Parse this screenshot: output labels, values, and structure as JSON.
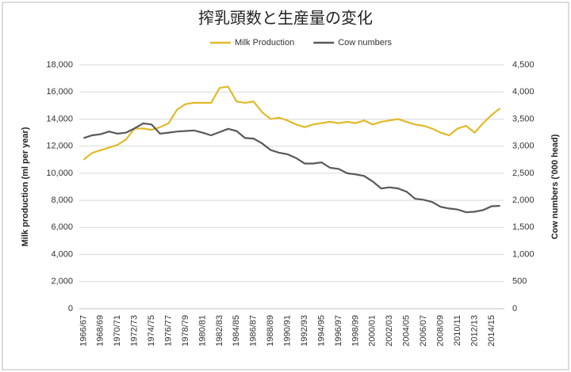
{
  "chart_data": {
    "type": "line",
    "title": "搾乳頭数と生産量の変化",
    "y_label": "Milk production (ml per year)",
    "y2_label": "Cow numbers ('000 head)",
    "legend": "top",
    "grid": true,
    "categories": [
      "1966/67",
      null,
      "1968/69",
      null,
      "1970/71",
      null,
      "1972/73",
      null,
      "1974/75",
      null,
      "1976/77",
      null,
      "1978/79",
      null,
      "1980/81",
      null,
      "1982/83",
      null,
      "1984/85",
      null,
      "1986/87",
      null,
      "1988/89",
      null,
      "1990/91",
      null,
      "1992/93",
      null,
      "1994/95",
      null,
      "1996/97",
      null,
      "1998/99",
      null,
      "2000/01",
      null,
      "2002/03",
      null,
      "2004/05",
      null,
      "2006/07",
      null,
      "2008/09",
      null,
      "2010/11",
      null,
      "2012/13",
      null,
      "2014/15",
      null
    ],
    "series": [
      {
        "name": "Milk Production",
        "color": "#e2b928",
        "axis": "y",
        "values": [
          11000,
          11500,
          11700,
          11900,
          12100,
          12500,
          13300,
          13300,
          13200,
          13400,
          13700,
          14700,
          15100,
          15200,
          15200,
          15200,
          16300,
          16400,
          15300,
          15200,
          15300,
          14500,
          14000,
          14100,
          13900,
          13600,
          13400,
          13600,
          13700,
          13800,
          13700,
          13800,
          13700,
          13900,
          13600,
          13800,
          13900,
          14000,
          13800,
          13600,
          13500,
          13300,
          13000,
          12800,
          13300,
          13500,
          13000,
          13700,
          14300,
          14800
        ]
      },
      {
        "name": "Cow numbers",
        "color": "#595959",
        "axis": "y2",
        "values": [
          3150,
          3200,
          3220,
          3270,
          3230,
          3250,
          3330,
          3420,
          3400,
          3230,
          3250,
          3270,
          3280,
          3290,
          3250,
          3200,
          3260,
          3320,
          3280,
          3150,
          3140,
          3050,
          2930,
          2880,
          2850,
          2780,
          2680,
          2680,
          2700,
          2600,
          2580,
          2500,
          2480,
          2450,
          2350,
          2220,
          2240,
          2220,
          2160,
          2030,
          2010,
          1970,
          1880,
          1850,
          1830,
          1780,
          1790,
          1820,
          1890,
          1900
        ]
      }
    ],
    "ylim": [
      0,
      18000
    ],
    "yticks": [
      0,
      {
        "value": 2000,
        "label": "2,000"
      },
      {
        "value": 4000,
        "label": "4,000"
      },
      {
        "value": 6000,
        "label": "6,000"
      },
      {
        "value": 8000,
        "label": "8,000"
      },
      {
        "value": 10000,
        "label": "10,000"
      },
      {
        "value": 12000,
        "label": "12,000"
      },
      {
        "value": 14000,
        "label": "14,000"
      },
      {
        "value": 16000,
        "label": "16,000"
      },
      {
        "value": 18000,
        "label": "18,000"
      }
    ],
    "y2lim": [
      0,
      4500
    ],
    "y2ticks": [
      0,
      500,
      {
        "value": 1000,
        "label": "1,000"
      },
      {
        "value": 1500,
        "label": "1,500"
      },
      {
        "value": 2000,
        "label": "2,000"
      },
      {
        "value": 2500,
        "label": "2,500"
      },
      {
        "value": 3000,
        "label": "3,000"
      },
      {
        "value": 3500,
        "label": "3,500"
      },
      {
        "value": 4000,
        "label": "4,000"
      },
      {
        "value": 4500,
        "label": "4,500"
      }
    ]
  }
}
